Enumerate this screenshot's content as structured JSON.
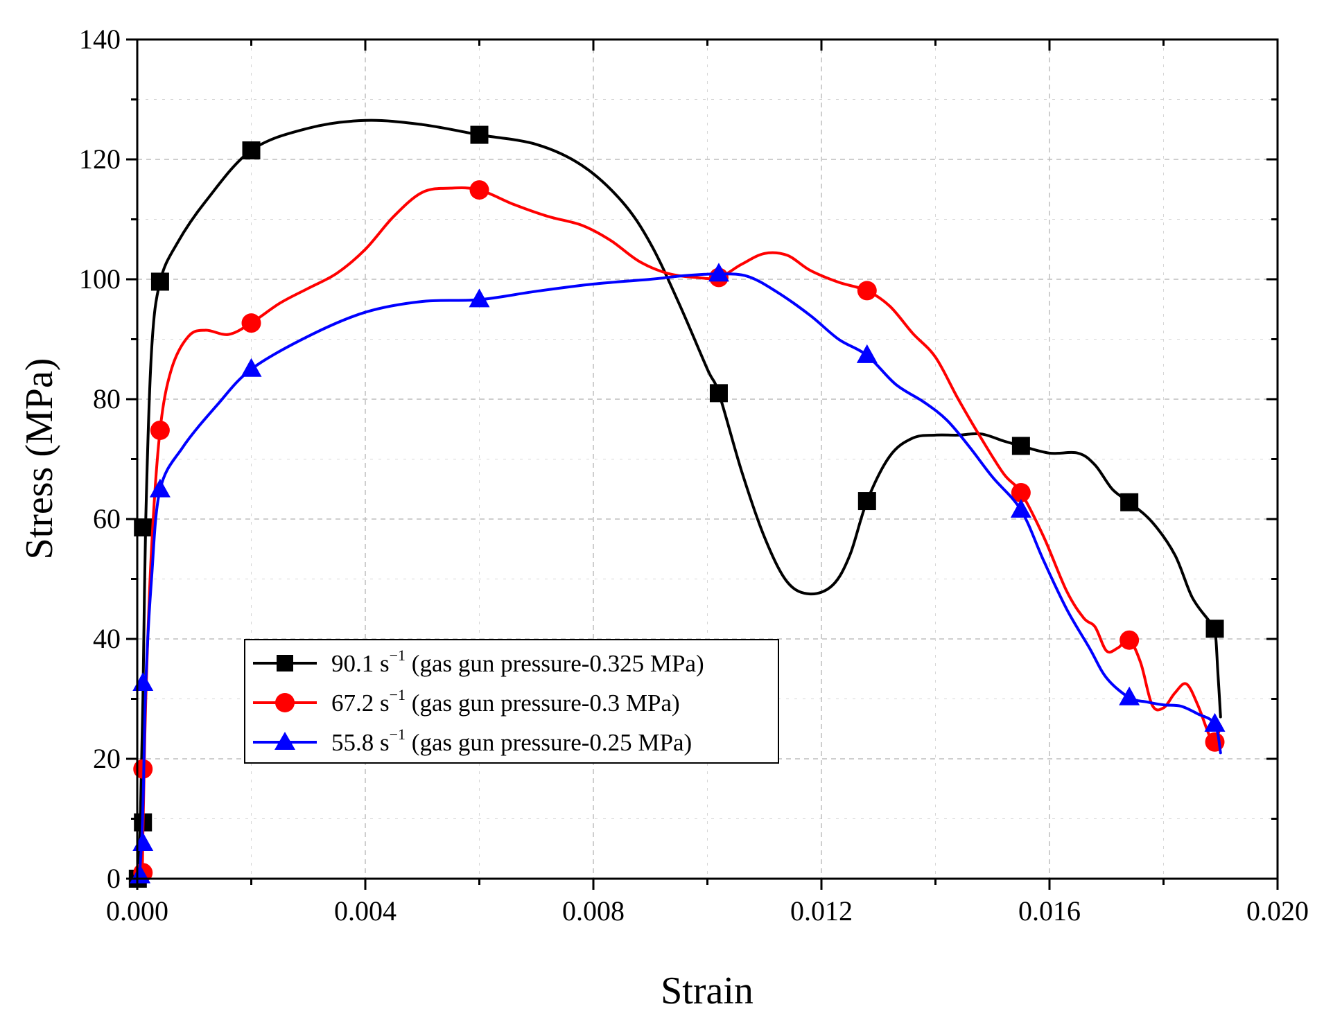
{
  "chart_data": {
    "type": "line",
    "xlabel": "Strain",
    "ylabel": "Stress (MPa)",
    "xlim": [
      0.0,
      0.02
    ],
    "ylim": [
      0,
      140
    ],
    "xticks": [
      "0.000",
      "0.004",
      "0.008",
      "0.012",
      "0.016",
      "0.020"
    ],
    "yticks": [
      "0",
      "20",
      "40",
      "60",
      "80",
      "100",
      "120",
      "140"
    ],
    "grid": true,
    "legend_position": "lower-left",
    "series": [
      {
        "name": "90.1 s-1 (gas gun pressure-0.325 MPa)",
        "rate": "90.1 s",
        "sup": "−1",
        "detail": " (gas gun pressure-0.325 MPa)",
        "color": "#000000",
        "marker": "square",
        "markers": [
          [
            1e-05,
            0
          ],
          [
            0.0001,
            9.4
          ],
          [
            0.0001,
            58.6
          ],
          [
            0.0004,
            99.6
          ],
          [
            0.002,
            121.5
          ],
          [
            0.006,
            124.1
          ],
          [
            0.0102,
            81.0
          ],
          [
            0.0128,
            63.0
          ],
          [
            0.0155,
            72.2
          ],
          [
            0.0174,
            62.8
          ],
          [
            0.0189,
            41.7
          ]
        ],
        "curve": [
          [
            0.0,
            0
          ],
          [
            5e-05,
            8
          ],
          [
            0.0001,
            30
          ],
          [
            0.00015,
            60
          ],
          [
            0.00025,
            88
          ],
          [
            0.0004,
            99.6
          ],
          [
            0.0007,
            106
          ],
          [
            0.0012,
            113
          ],
          [
            0.002,
            121.5
          ],
          [
            0.003,
            125.2
          ],
          [
            0.004,
            126.5
          ],
          [
            0.005,
            125.8
          ],
          [
            0.006,
            124.1
          ],
          [
            0.007,
            122.5
          ],
          [
            0.0078,
            119
          ],
          [
            0.0085,
            113
          ],
          [
            0.009,
            106
          ],
          [
            0.0095,
            96
          ],
          [
            0.01,
            85
          ],
          [
            0.0102,
            81.0
          ],
          [
            0.0106,
            68
          ],
          [
            0.011,
            57
          ],
          [
            0.0114,
            49.5
          ],
          [
            0.0118,
            47.5
          ],
          [
            0.0122,
            49
          ],
          [
            0.0125,
            54
          ],
          [
            0.0128,
            63.0
          ],
          [
            0.0132,
            70.5
          ],
          [
            0.0136,
            73.5
          ],
          [
            0.014,
            74
          ],
          [
            0.0144,
            74
          ],
          [
            0.0148,
            74.2
          ],
          [
            0.0152,
            73
          ],
          [
            0.0155,
            72.2
          ],
          [
            0.016,
            71
          ],
          [
            0.0165,
            71
          ],
          [
            0.0168,
            69
          ],
          [
            0.0171,
            65
          ],
          [
            0.0174,
            62.8
          ],
          [
            0.0178,
            59.5
          ],
          [
            0.0182,
            54
          ],
          [
            0.0185,
            47
          ],
          [
            0.0188,
            43
          ],
          [
            0.0189,
            41.7
          ],
          [
            0.01895,
            35
          ],
          [
            0.019,
            27
          ]
        ]
      },
      {
        "name": "67.2 s-1 (gas gun pressure-0.3 MPa)",
        "rate": "67.2 s",
        "sup": "−1",
        "detail": " (gas gun pressure-0.3 MPa)",
        "color": "#ff0000",
        "marker": "circle",
        "markers": [
          [
            0.0001,
            1.0
          ],
          [
            0.0001,
            18.3
          ],
          [
            0.0004,
            74.8
          ],
          [
            0.002,
            92.7
          ],
          [
            0.006,
            114.9
          ],
          [
            0.0102,
            100.3
          ],
          [
            0.0128,
            98.1
          ],
          [
            0.0155,
            64.4
          ],
          [
            0.0174,
            39.8
          ],
          [
            0.0189,
            22.8
          ]
        ],
        "curve": [
          [
            0.0,
            0
          ],
          [
            8e-05,
            0.5
          ],
          [
            0.0001,
            8
          ],
          [
            0.00015,
            30
          ],
          [
            0.00025,
            55
          ],
          [
            0.0004,
            74.8
          ],
          [
            0.0006,
            85
          ],
          [
            0.0009,
            90.5
          ],
          [
            0.0012,
            91.5
          ],
          [
            0.0016,
            90.8
          ],
          [
            0.002,
            92.7
          ],
          [
            0.0025,
            96
          ],
          [
            0.003,
            98.5
          ],
          [
            0.0035,
            101
          ],
          [
            0.004,
            105
          ],
          [
            0.0045,
            110.5
          ],
          [
            0.005,
            114.5
          ],
          [
            0.0055,
            115.2
          ],
          [
            0.006,
            114.9
          ],
          [
            0.0066,
            112.5
          ],
          [
            0.0072,
            110.5
          ],
          [
            0.0078,
            109
          ],
          [
            0.0083,
            106.5
          ],
          [
            0.0088,
            103
          ],
          [
            0.0093,
            101
          ],
          [
            0.0098,
            100.3
          ],
          [
            0.0102,
            100.3
          ],
          [
            0.0106,
            102.5
          ],
          [
            0.011,
            104.3
          ],
          [
            0.0114,
            104
          ],
          [
            0.0118,
            101.5
          ],
          [
            0.0123,
            99.5
          ],
          [
            0.0128,
            98.1
          ],
          [
            0.0132,
            95.5
          ],
          [
            0.0136,
            91
          ],
          [
            0.014,
            87
          ],
          [
            0.0144,
            80
          ],
          [
            0.0148,
            73.5
          ],
          [
            0.0152,
            67.5
          ],
          [
            0.0155,
            64.4
          ],
          [
            0.0159,
            57
          ],
          [
            0.0163,
            48
          ],
          [
            0.0166,
            43.5
          ],
          [
            0.0168,
            42
          ],
          [
            0.017,
            38
          ],
          [
            0.0172,
            38.5
          ],
          [
            0.0174,
            39.8
          ],
          [
            0.0176,
            36
          ],
          [
            0.0178,
            29
          ],
          [
            0.018,
            28.5
          ],
          [
            0.0182,
            31
          ],
          [
            0.0184,
            32.5
          ],
          [
            0.0186,
            29
          ],
          [
            0.0188,
            24
          ],
          [
            0.0189,
            22.8
          ],
          [
            0.019,
            25.5
          ]
        ]
      },
      {
        "name": "55.8 s-1 (gas gun pressure-0.25 MPa)",
        "rate": "55.8 s",
        "sup": "−1",
        "detail": " (gas gun pressure-0.25 MPa)",
        "color": "#0000ff",
        "marker": "triangle",
        "markers": [
          [
            5e-05,
            0.5
          ],
          [
            0.0001,
            5.9
          ],
          [
            0.0001,
            32.6
          ],
          [
            0.0004,
            64.9
          ],
          [
            0.002,
            85.0
          ],
          [
            0.006,
            96.6
          ],
          [
            0.0102,
            100.9
          ],
          [
            0.0128,
            87.3
          ],
          [
            0.0155,
            61.5
          ],
          [
            0.0174,
            30.2
          ],
          [
            0.0189,
            25.8
          ]
        ],
        "curve": [
          [
            0.0,
            0
          ],
          [
            5e-05,
            2
          ],
          [
            0.0001,
            12
          ],
          [
            0.00015,
            32.6
          ],
          [
            0.00025,
            50
          ],
          [
            0.0004,
            64.9
          ],
          [
            0.0008,
            72
          ],
          [
            0.0014,
            79
          ],
          [
            0.002,
            85.0
          ],
          [
            0.003,
            90.5
          ],
          [
            0.004,
            94.5
          ],
          [
            0.005,
            96.3
          ],
          [
            0.006,
            96.6
          ],
          [
            0.007,
            98
          ],
          [
            0.008,
            99.2
          ],
          [
            0.009,
            100
          ],
          [
            0.0096,
            100.6
          ],
          [
            0.0102,
            100.9
          ],
          [
            0.0107,
            100.5
          ],
          [
            0.0112,
            98
          ],
          [
            0.0118,
            94
          ],
          [
            0.0123,
            90
          ],
          [
            0.0128,
            87.3
          ],
          [
            0.0133,
            82.5
          ],
          [
            0.0138,
            79.5
          ],
          [
            0.0142,
            76.5
          ],
          [
            0.0146,
            72
          ],
          [
            0.015,
            67
          ],
          [
            0.0155,
            61.5
          ],
          [
            0.0159,
            53
          ],
          [
            0.0163,
            45
          ],
          [
            0.0167,
            38.5
          ],
          [
            0.017,
            33.5
          ],
          [
            0.0174,
            30.2
          ],
          [
            0.0177,
            29.5
          ],
          [
            0.018,
            29
          ],
          [
            0.0183,
            28.8
          ],
          [
            0.0186,
            27.5
          ],
          [
            0.0189,
            25.8
          ],
          [
            0.019,
            21
          ]
        ]
      }
    ]
  }
}
